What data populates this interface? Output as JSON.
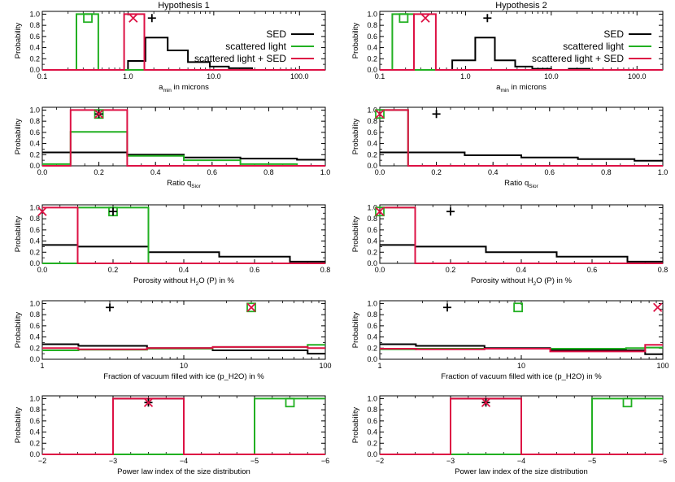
{
  "colors": {
    "SED": "#000000",
    "scattered_light": "#22b022",
    "scattered_light_SED": "#dd1144"
  },
  "chart_data": [
    {
      "type": "step",
      "title": "Hypothesis 1",
      "xlabel_parts": [
        "a",
        "min",
        " in microns"
      ],
      "ylabel": "Probability",
      "xscale": "log",
      "xlim": [
        0.1,
        200
      ],
      "ylim": [
        0,
        1.05
      ],
      "xticks": [
        0.1,
        1.0,
        10.0,
        100.0
      ],
      "xtick_labels": [
        "0.1",
        "1.0",
        "10.0",
        "100.0"
      ],
      "yticks": [
        0,
        0.2,
        0.4,
        0.6,
        0.8,
        1.0
      ],
      "ytick_labels": [
        "0.0",
        "0.2",
        "0.4",
        "0.6",
        "0.8",
        "1.0"
      ],
      "legend": [
        "SED",
        "scattered light",
        "scattered light + SED"
      ],
      "series": [
        {
          "name": "SED",
          "edges": [
            0.1,
            1.0,
            1.6,
            2.9,
            5.0,
            9.0,
            15.0,
            28.0,
            200.0
          ],
          "values": [
            0.0,
            0.16,
            0.58,
            0.35,
            0.14,
            0.06,
            0.03,
            0.0
          ]
        },
        {
          "name": "scattered light",
          "edges": [
            0.1,
            0.25,
            0.45,
            200.0
          ],
          "values": [
            0.0,
            1.0,
            0.0
          ]
        },
        {
          "name": "scattered light + SED",
          "edges": [
            0.1,
            0.9,
            1.55,
            200.0
          ],
          "values": [
            0.0,
            1.0,
            0.0
          ]
        }
      ],
      "markers": [
        {
          "series": "SED",
          "symbol": "plus",
          "x": 1.9,
          "y": 0.93
        },
        {
          "series": "scattered light",
          "symbol": "square",
          "x": 0.34,
          "y": 0.93
        },
        {
          "series": "scattered light + SED",
          "symbol": "cross",
          "x": 1.15,
          "y": 0.93
        }
      ]
    },
    {
      "type": "step",
      "title": "Hypothesis 2",
      "xlabel_parts": [
        "a",
        "min",
        " in microns"
      ],
      "ylabel": "Probability",
      "xscale": "log",
      "xlim": [
        0.1,
        200
      ],
      "ylim": [
        0,
        1.05
      ],
      "xticks": [
        0.1,
        1.0,
        10.0,
        100.0
      ],
      "xtick_labels": [
        "0.1",
        "1.0",
        "10.0",
        "100.0"
      ],
      "yticks": [
        0,
        0.2,
        0.4,
        0.6,
        0.8,
        1.0
      ],
      "ytick_labels": [
        "0.0",
        "0.2",
        "0.4",
        "0.6",
        "0.8",
        "1.0"
      ],
      "legend": [
        "SED",
        "scattered light",
        "scattered light + SED"
      ],
      "series": [
        {
          "name": "SED",
          "edges": [
            0.1,
            0.7,
            1.3,
            2.2,
            3.8,
            6.0,
            10.0,
            16.0,
            28.0,
            200.0
          ],
          "values": [
            0.0,
            0.17,
            0.58,
            0.17,
            0.06,
            0.02,
            0.0,
            0.02,
            0.0
          ]
        },
        {
          "name": "scattered light",
          "edges": [
            0.1,
            0.14,
            0.25,
            200.0
          ],
          "values": [
            0.0,
            1.0,
            0.0
          ]
        },
        {
          "name": "scattered light + SED",
          "edges": [
            0.1,
            0.25,
            0.45,
            200.0
          ],
          "values": [
            0.0,
            1.0,
            0.0
          ]
        }
      ],
      "markers": [
        {
          "series": "SED",
          "symbol": "plus",
          "x": 1.8,
          "y": 0.93
        },
        {
          "series": "scattered light",
          "symbol": "square",
          "x": 0.19,
          "y": 0.93
        },
        {
          "series": "scattered light + SED",
          "symbol": "cross",
          "x": 0.34,
          "y": 0.93
        }
      ]
    },
    {
      "type": "step",
      "xlabel_parts": [
        "Ratio q",
        "Sior",
        ""
      ],
      "ylabel": "Probability",
      "xscale": "linear",
      "xlim": [
        0,
        1.0
      ],
      "ylim": [
        0,
        1.05
      ],
      "xticks": [
        0,
        0.2,
        0.4,
        0.6,
        0.8,
        1.0
      ],
      "xtick_labels": [
        "0.0",
        "0.2",
        "0.4",
        "0.6",
        "0.8",
        "1.0"
      ],
      "yticks": [
        0,
        0.2,
        0.4,
        0.6,
        0.8,
        1.0
      ],
      "ytick_labels": [
        "0.0",
        "0.2",
        "0.4",
        "0.6",
        "0.8",
        "1.0"
      ],
      "series": [
        {
          "name": "SED",
          "edges": [
            0,
            0.1,
            0.3,
            0.5,
            0.7,
            0.9,
            1.0
          ],
          "values": [
            0.24,
            0.24,
            0.2,
            0.15,
            0.13,
            0.11
          ]
        },
        {
          "name": "scattered light",
          "edges": [
            0,
            0.1,
            0.3,
            0.5,
            0.7,
            0.9,
            1.0
          ],
          "values": [
            0.03,
            0.61,
            0.18,
            0.1,
            0.03,
            0.0
          ]
        },
        {
          "name": "scattered light + SED",
          "edges": [
            0,
            0.1,
            0.3,
            1.0
          ],
          "values": [
            0.0,
            1.0,
            0.0
          ]
        }
      ],
      "markers": [
        {
          "series": "scattered light",
          "symbol": "square",
          "x": 0.2,
          "y": 0.93
        },
        {
          "series": "SED",
          "symbol": "plus",
          "x": 0.2,
          "y": 0.93
        },
        {
          "series": "scattered light + SED",
          "symbol": "cross",
          "x": 0.2,
          "y": 0.93
        }
      ]
    },
    {
      "type": "step",
      "xlabel_parts": [
        "Ratio q",
        "Sior",
        ""
      ],
      "ylabel": "Probability",
      "xscale": "linear",
      "xlim": [
        0,
        1.0
      ],
      "ylim": [
        0,
        1.05
      ],
      "xticks": [
        0,
        0.2,
        0.4,
        0.6,
        0.8,
        1.0
      ],
      "xtick_labels": [
        "0.0",
        "0.2",
        "0.4",
        "0.6",
        "0.8",
        "1.0"
      ],
      "yticks": [
        0,
        0.2,
        0.4,
        0.6,
        0.8,
        1.0
      ],
      "ytick_labels": [
        "0.0",
        "0.2",
        "0.4",
        "0.6",
        "0.8",
        "1.0"
      ],
      "series": [
        {
          "name": "SED",
          "edges": [
            0,
            0.1,
            0.3,
            0.5,
            0.7,
            0.9,
            1.0
          ],
          "values": [
            0.24,
            0.24,
            0.19,
            0.15,
            0.12,
            0.09
          ]
        },
        {
          "name": "scattered light",
          "edges": [
            0,
            0.1,
            1.0
          ],
          "values": [
            1.0,
            0.0
          ]
        },
        {
          "name": "scattered light + SED",
          "edges": [
            0,
            0.1,
            1.0
          ],
          "values": [
            1.0,
            0.0
          ]
        }
      ],
      "markers": [
        {
          "series": "SED",
          "symbol": "plus",
          "x": 0.2,
          "y": 0.93
        },
        {
          "series": "scattered light",
          "symbol": "square",
          "x": 0.0,
          "y": 0.93
        },
        {
          "series": "scattered light + SED",
          "symbol": "cross",
          "x": 0.0,
          "y": 0.93
        }
      ]
    },
    {
      "type": "step",
      "xlabel_parts": [
        "Porosity without H",
        "2",
        "O (P) in %"
      ],
      "ylabel": "Probability",
      "xscale": "linear",
      "xlim": [
        0,
        0.8
      ],
      "ylim": [
        0,
        1.05
      ],
      "xticks": [
        0,
        0.2,
        0.4,
        0.6,
        0.8
      ],
      "xtick_labels": [
        "0.0",
        "0.2",
        "0.4",
        "0.6",
        "0.8"
      ],
      "yticks": [
        0,
        0.2,
        0.4,
        0.6,
        0.8,
        1.0
      ],
      "ytick_labels": [
        "0.0",
        "0.2",
        "0.4",
        "0.6",
        "0.8",
        "1.0"
      ],
      "series": [
        {
          "name": "SED",
          "edges": [
            0,
            0.1,
            0.3,
            0.5,
            0.7,
            0.8
          ],
          "values": [
            0.33,
            0.3,
            0.2,
            0.12,
            0.03
          ]
        },
        {
          "name": "scattered light",
          "edges": [
            0,
            0.1,
            0.3,
            0.8
          ],
          "values": [
            0.0,
            1.0,
            0.0
          ]
        },
        {
          "name": "scattered light + SED",
          "edges": [
            0,
            0.1,
            0.8
          ],
          "values": [
            1.0,
            0.0
          ]
        }
      ],
      "markers": [
        {
          "series": "scattered light",
          "symbol": "square",
          "x": 0.2,
          "y": 0.93
        },
        {
          "series": "SED",
          "symbol": "plus",
          "x": 0.2,
          "y": 0.93
        },
        {
          "series": "scattered light + SED",
          "symbol": "cross",
          "x": 0.0,
          "y": 0.93
        }
      ]
    },
    {
      "type": "step",
      "xlabel_parts": [
        "Porosity without H",
        "2",
        "O (P) in %"
      ],
      "ylabel": "Probability",
      "xscale": "linear",
      "xlim": [
        0,
        0.8
      ],
      "ylim": [
        0,
        1.05
      ],
      "xticks": [
        0,
        0.2,
        0.4,
        0.6,
        0.8
      ],
      "xtick_labels": [
        "0.0",
        "0.2",
        "0.4",
        "0.6",
        "0.8"
      ],
      "yticks": [
        0,
        0.2,
        0.4,
        0.6,
        0.8,
        1.0
      ],
      "ytick_labels": [
        "0.0",
        "0.2",
        "0.4",
        "0.6",
        "0.8",
        "1.0"
      ],
      "series": [
        {
          "name": "SED",
          "edges": [
            0,
            0.1,
            0.3,
            0.5,
            0.7,
            0.8
          ],
          "values": [
            0.33,
            0.3,
            0.2,
            0.12,
            0.03
          ]
        },
        {
          "name": "scattered light",
          "edges": [
            0,
            0.1,
            0.8
          ],
          "values": [
            1.0,
            0.0
          ]
        },
        {
          "name": "scattered light + SED",
          "edges": [
            0,
            0.1,
            0.8
          ],
          "values": [
            1.0,
            0.0
          ]
        }
      ],
      "markers": [
        {
          "series": "SED",
          "symbol": "plus",
          "x": 0.2,
          "y": 0.93
        },
        {
          "series": "scattered light",
          "symbol": "square",
          "x": 0.0,
          "y": 0.93
        },
        {
          "series": "scattered light + SED",
          "symbol": "cross",
          "x": 0.0,
          "y": 0.93
        }
      ]
    },
    {
      "type": "step",
      "xlabel_parts": [
        "Fraction of vacuum filled with ice (p_H2O) in %",
        "",
        ""
      ],
      "ylabel": "Probability",
      "xscale": "log",
      "xlim": [
        1,
        100
      ],
      "ylim": [
        0,
        1.05
      ],
      "xticks": [
        1,
        10,
        100
      ],
      "xtick_labels": [
        "1",
        "10",
        "100"
      ],
      "yticks": [
        0,
        0.2,
        0.4,
        0.6,
        0.8,
        1.0
      ],
      "ytick_labels": [
        "0.0",
        "0.2",
        "0.4",
        "0.6",
        "0.8",
        "1.0"
      ],
      "series": [
        {
          "name": "SED",
          "edges": [
            1,
            1.8,
            5.5,
            16,
            75,
            100
          ],
          "values": [
            0.27,
            0.24,
            0.2,
            0.16,
            0.1
          ]
        },
        {
          "name": "scattered light",
          "edges": [
            1,
            1.8,
            5.5,
            16,
            75,
            100
          ],
          "values": [
            0.16,
            0.17,
            0.19,
            0.22,
            0.26
          ]
        },
        {
          "name": "scattered light + SED",
          "edges": [
            1,
            1.8,
            5.5,
            16,
            75,
            100
          ],
          "values": [
            0.2,
            0.18,
            0.2,
            0.22,
            0.2
          ]
        }
      ],
      "markers": [
        {
          "series": "SED",
          "symbol": "plus",
          "x": 3.0,
          "y": 0.93
        },
        {
          "series": "scattered light",
          "symbol": "square",
          "x": 30,
          "y": 0.93
        },
        {
          "series": "scattered light + SED",
          "symbol": "cross",
          "x": 30,
          "y": 0.93
        }
      ]
    },
    {
      "type": "step",
      "xlabel_parts": [
        "Fraction of vacuum filled with ice (p_H2O) in %",
        "",
        ""
      ],
      "ylabel": "Probability",
      "xscale": "log",
      "xlim": [
        1,
        100
      ],
      "ylim": [
        0,
        1.05
      ],
      "xticks": [
        1,
        10,
        100
      ],
      "xtick_labels": [
        "1",
        "10",
        "100"
      ],
      "yticks": [
        0,
        0.2,
        0.4,
        0.6,
        0.8,
        1.0
      ],
      "ytick_labels": [
        "0.0",
        "0.2",
        "0.4",
        "0.6",
        "0.8",
        "1.0"
      ],
      "series": [
        {
          "name": "SED",
          "edges": [
            1,
            1.8,
            5.5,
            16,
            55,
            75,
            100
          ],
          "values": [
            0.27,
            0.24,
            0.2,
            0.16,
            0.16,
            0.09
          ]
        },
        {
          "name": "scattered light",
          "edges": [
            1,
            1.8,
            5.5,
            16,
            55,
            75,
            100
          ],
          "values": [
            0.18,
            0.19,
            0.19,
            0.19,
            0.2,
            0.21
          ]
        },
        {
          "name": "scattered light + SED",
          "edges": [
            1,
            1.8,
            5.5,
            16,
            55,
            75,
            100
          ],
          "values": [
            0.19,
            0.18,
            0.19,
            0.14,
            0.14,
            0.26
          ]
        }
      ],
      "markers": [
        {
          "series": "SED",
          "symbol": "plus",
          "x": 3.0,
          "y": 0.93
        },
        {
          "series": "scattered light",
          "symbol": "square",
          "x": 9.5,
          "y": 0.93
        },
        {
          "series": "scattered light + SED",
          "symbol": "cross",
          "x": 92,
          "y": 0.93
        }
      ]
    },
    {
      "type": "step",
      "xlabel_parts": [
        "Power law index of the size distribution",
        "",
        ""
      ],
      "ylabel": "Probability",
      "xscale": "linear",
      "xlim": [
        -2,
        -6
      ],
      "ylim": [
        0,
        1.05
      ],
      "xticks": [
        -2,
        -3,
        -4,
        -5,
        -6
      ],
      "xtick_labels": [
        "−2",
        "−3",
        "−4",
        "−5",
        "−6"
      ],
      "yticks": [
        0,
        0.2,
        0.4,
        0.6,
        0.8,
        1.0
      ],
      "ytick_labels": [
        "0.0",
        "0.2",
        "0.4",
        "0.6",
        "0.8",
        "1.0"
      ],
      "series": [
        {
          "name": "SED",
          "edges": [
            -2,
            -3,
            -4,
            -6
          ],
          "values": [
            0.0,
            1.0,
            0.0
          ]
        },
        {
          "name": "scattered light",
          "edges": [
            -2,
            -5,
            -6
          ],
          "values": [
            0.0,
            1.0
          ]
        },
        {
          "name": "scattered light + SED",
          "edges": [
            -2,
            -3,
            -4,
            -6
          ],
          "values": [
            0.0,
            1.0,
            0.0
          ]
        }
      ],
      "markers": [
        {
          "series": "SED",
          "symbol": "plus",
          "x": -3.5,
          "y": 0.93
        },
        {
          "series": "scattered light + SED",
          "symbol": "cross",
          "x": -3.5,
          "y": 0.93
        },
        {
          "series": "scattered light",
          "symbol": "square",
          "x": -5.5,
          "y": 0.93
        }
      ]
    },
    {
      "type": "step",
      "xlabel_parts": [
        "Power law index of the size distribution",
        "",
        ""
      ],
      "ylabel": "Probability",
      "xscale": "linear",
      "xlim": [
        -2,
        -6
      ],
      "ylim": [
        0,
        1.05
      ],
      "xticks": [
        -2,
        -3,
        -4,
        -5,
        -6
      ],
      "xtick_labels": [
        "−2",
        "−3",
        "−4",
        "−5",
        "−6"
      ],
      "yticks": [
        0,
        0.2,
        0.4,
        0.6,
        0.8,
        1.0
      ],
      "ytick_labels": [
        "0.0",
        "0.2",
        "0.4",
        "0.6",
        "0.8",
        "1.0"
      ],
      "series": [
        {
          "name": "SED",
          "edges": [
            -2,
            -3,
            -4,
            -6
          ],
          "values": [
            0.0,
            1.0,
            0.0
          ]
        },
        {
          "name": "scattered light",
          "edges": [
            -2,
            -5,
            -6
          ],
          "values": [
            0.0,
            1.0
          ]
        },
        {
          "name": "scattered light + SED",
          "edges": [
            -2,
            -3,
            -4,
            -6
          ],
          "values": [
            0.0,
            1.0,
            0.0
          ]
        }
      ],
      "markers": [
        {
          "series": "SED",
          "symbol": "plus",
          "x": -3.5,
          "y": 0.93
        },
        {
          "series": "scattered light + SED",
          "symbol": "cross",
          "x": -3.5,
          "y": 0.93
        },
        {
          "series": "scattered light",
          "symbol": "square",
          "x": -5.5,
          "y": 0.93
        }
      ]
    }
  ]
}
